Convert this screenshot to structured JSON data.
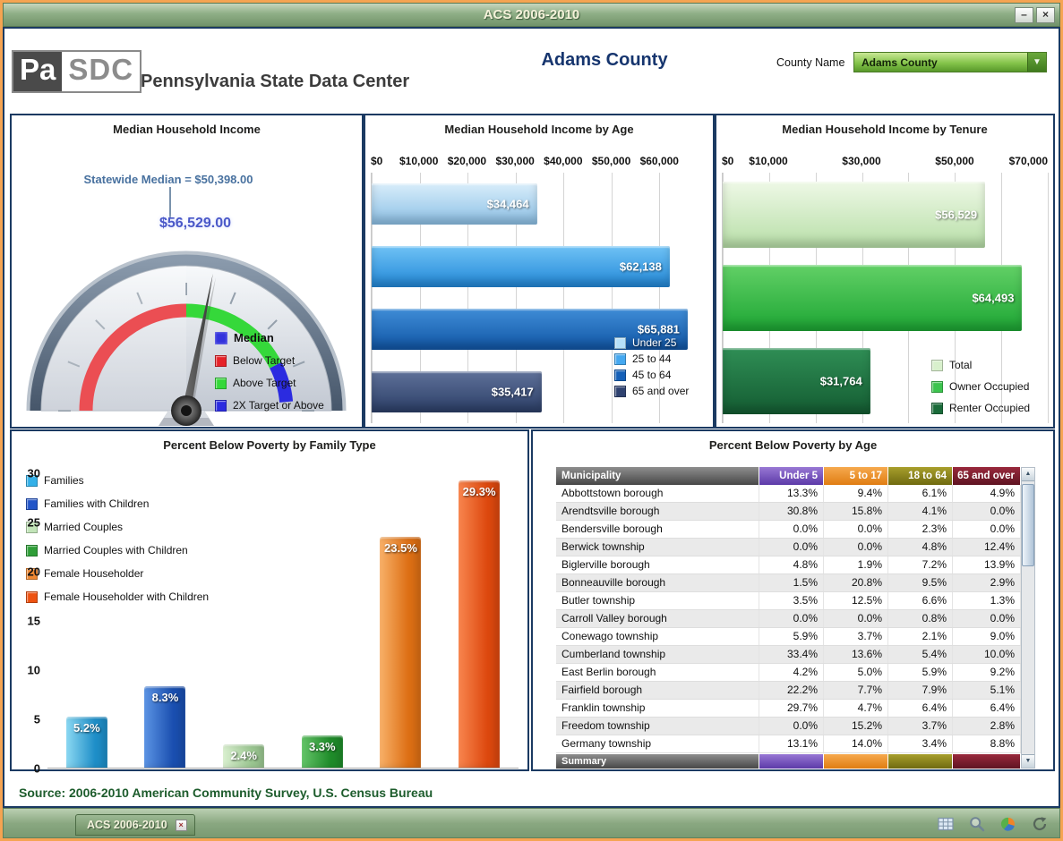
{
  "theme": {
    "frame_color": "#f5a452",
    "titlebar_green": "#7e9d76",
    "panel_border": "#1b3a62",
    "source_green": "#1d5c2c"
  },
  "window": {
    "title": "ACS 2006-2010",
    "minimize_glyph": "–",
    "close_glyph": "×"
  },
  "header": {
    "logo_pa": "Pa",
    "logo_sdc": "SDC",
    "org_name": "Pennsylvania State Data Center",
    "county_title": "Adams County",
    "county_name_label": "County Name",
    "county_dropdown_value": "Adams County",
    "dropdown_arrow": "▼"
  },
  "gauge": {
    "title": "Median Household Income",
    "statewide_label": "Statewide Median = $50,398.00",
    "value_label": "$56,529.00",
    "legend_title": "Median",
    "legend_marker_color": "#3232dc",
    "legend": [
      {
        "label": "Below Target",
        "color": "#e62229"
      },
      {
        "label": "Above Target",
        "color": "#35d83a"
      },
      {
        "label": "2X Target or Above",
        "color": "#2b2be0"
      }
    ]
  },
  "income_by_age": {
    "title": "Median Household Income by Age",
    "axis_max": 70000,
    "gridline_values": [
      0,
      10000,
      20000,
      30000,
      40000,
      50000,
      60000
    ],
    "tick_values": [
      0,
      10000,
      20000,
      30000,
      40000,
      50000,
      60000
    ],
    "tick_labels": [
      "$0",
      "$10,000",
      "$20,000",
      "$30,000",
      "$40,000",
      "$50,000",
      "$60,000"
    ],
    "bars": [
      {
        "category": "Under 25",
        "value": 34464,
        "label": "$34,464",
        "color_light": "#d8edfa",
        "color_dark": "#8cc0e6"
      },
      {
        "category": "25 to 44",
        "value": 62138,
        "label": "$62,138",
        "color_light": "#6fc2f5",
        "color_dark": "#2288d8"
      },
      {
        "category": "45 to 64",
        "value": 65881,
        "label": "$65,881",
        "color_light": "#3f8cd6",
        "color_dark": "#1156a6"
      },
      {
        "category": "65 and over",
        "value": 35417,
        "label": "$35,417",
        "color_light": "#5e7098",
        "color_dark": "#2c3f68"
      }
    ],
    "legend": [
      {
        "label": "Under 25",
        "color": "#b6e0f8"
      },
      {
        "label": "25 to 44",
        "color": "#45a8f0"
      },
      {
        "label": "45 to 64",
        "color": "#1560b8"
      },
      {
        "label": "65 and over",
        "color": "#2f4270"
      }
    ]
  },
  "income_by_tenure": {
    "title": "Median Household Income by Tenure",
    "axis_max": 70000,
    "gridline_values": [
      0,
      10000,
      20000,
      30000,
      40000,
      50000,
      60000,
      70000
    ],
    "tick_values": [
      0,
      10000,
      30000,
      50000,
      70000
    ],
    "tick_labels": [
      "$0",
      "$10,000",
      "$30,000",
      "$50,000",
      "$70,000"
    ],
    "bars": [
      {
        "category": "Total",
        "value": 56529,
        "label": "$56,529",
        "color_light": "#eef8e6",
        "color_dark": "#b8dfa8"
      },
      {
        "category": "Owner Occupied",
        "value": 64493,
        "label": "$64,493",
        "color_light": "#62d066",
        "color_dark": "#1da634"
      },
      {
        "category": "Renter Occupied",
        "value": 31764,
        "label": "$31,764",
        "color_light": "#2f8e55",
        "color_dark": "#145c32"
      }
    ],
    "legend": [
      {
        "label": "Total",
        "color": "#d8f0cc"
      },
      {
        "label": "Owner Occupied",
        "color": "#3cc44e"
      },
      {
        "label": "Renter Occupied",
        "color": "#1a6b3a"
      }
    ]
  },
  "poverty_by_family": {
    "title": "Percent Below Poverty by Family Type",
    "y_max": 30,
    "y_ticks": [
      30,
      25,
      20,
      15,
      10,
      5,
      0
    ],
    "bars": [
      {
        "category": "Families",
        "value": 5.2,
        "label": "5.2%",
        "color_light": "#8bd8f2",
        "color_dark": "#1e8ec8"
      },
      {
        "category": "Families with Children",
        "value": 8.3,
        "label": "8.3%",
        "color_light": "#5c94e4",
        "color_dark": "#1a4fb0"
      },
      {
        "category": "Married Couples",
        "value": 2.4,
        "label": "2.4%",
        "color_light": "#daf0d0",
        "color_dark": "#9cc892"
      },
      {
        "category": "Married Couples with Children",
        "value": 3.3,
        "label": "3.3%",
        "color_light": "#64c468",
        "color_dark": "#1f8c2a"
      },
      {
        "category": "Female Householder",
        "value": 23.5,
        "label": "23.5%",
        "color_light": "#f8b068",
        "color_dark": "#dd6f14"
      },
      {
        "category": "Female Householder with Children",
        "value": 29.3,
        "label": "29.3%",
        "color_light": "#f8854e",
        "color_dark": "#dd480e"
      }
    ],
    "legend": [
      {
        "label": "Families",
        "color": "#33b0e8"
      },
      {
        "label": "Families with Children",
        "color": "#2255c8"
      },
      {
        "label": "Married Couples",
        "color": "#c2e4b8"
      },
      {
        "label": "Married Couples with Children",
        "color": "#2f9e38"
      },
      {
        "label": "Female Householder",
        "color": "#ef8832"
      },
      {
        "label": "Female Householder with Children",
        "color": "#ee5211"
      }
    ]
  },
  "poverty_by_age": {
    "title": "Percent Below Poverty by Age",
    "columns": [
      {
        "label": "Municipality",
        "color_light": "#8e8e8e",
        "color_dark": "#474747"
      },
      {
        "label": "Under 5",
        "color_light": "#9878d4",
        "color_dark": "#5c3aa8"
      },
      {
        "label": "5 to 17",
        "color_light": "#f6a94e",
        "color_dark": "#e07d12"
      },
      {
        "label": "18 to 64",
        "color_light": "#a89f2c",
        "color_dark": "#6f6a10"
      },
      {
        "label": "65 and over",
        "color_light": "#99293c",
        "color_dark": "#5f1422"
      }
    ],
    "rows": [
      [
        "Abbottstown borough",
        "13.3%",
        "9.4%",
        "6.1%",
        "4.9%"
      ],
      [
        "Arendtsville borough",
        "30.8%",
        "15.8%",
        "4.1%",
        "0.0%"
      ],
      [
        "Bendersville borough",
        "0.0%",
        "0.0%",
        "2.3%",
        "0.0%"
      ],
      [
        "Berwick township",
        "0.0%",
        "0.0%",
        "4.8%",
        "12.4%"
      ],
      [
        "Biglerville borough",
        "4.8%",
        "1.9%",
        "7.2%",
        "13.9%"
      ],
      [
        "Bonneauville borough",
        "1.5%",
        "20.8%",
        "9.5%",
        "2.9%"
      ],
      [
        "Butler township",
        "3.5%",
        "12.5%",
        "6.6%",
        "1.3%"
      ],
      [
        "Carroll Valley borough",
        "0.0%",
        "0.0%",
        "0.8%",
        "0.0%"
      ],
      [
        "Conewago township",
        "5.9%",
        "3.7%",
        "2.1%",
        "9.0%"
      ],
      [
        "Cumberland township",
        "33.4%",
        "13.6%",
        "5.4%",
        "10.0%"
      ],
      [
        "East Berlin borough",
        "4.2%",
        "5.0%",
        "5.9%",
        "9.2%"
      ],
      [
        "Fairfield borough",
        "22.2%",
        "7.7%",
        "7.9%",
        "5.1%"
      ],
      [
        "Franklin township",
        "29.7%",
        "4.7%",
        "6.4%",
        "6.4%"
      ],
      [
        "Freedom township",
        "0.0%",
        "15.2%",
        "3.7%",
        "2.8%"
      ],
      [
        "Germany township",
        "13.1%",
        "14.0%",
        "3.4%",
        "8.8%"
      ]
    ],
    "summary_label": "Summary",
    "scrollbar": {
      "up_glyph": "▲",
      "down_glyph": "▼"
    }
  },
  "footer": {
    "source": "Source: 2006-2010 American Community Survey, U.S. Census Bureau"
  },
  "taskbar": {
    "tab_label": "ACS 2006-2010",
    "tab_close_glyph": "×",
    "icons": [
      "table-view-icon",
      "zoom-icon",
      "chart-type-icon",
      "refresh-icon"
    ]
  }
}
